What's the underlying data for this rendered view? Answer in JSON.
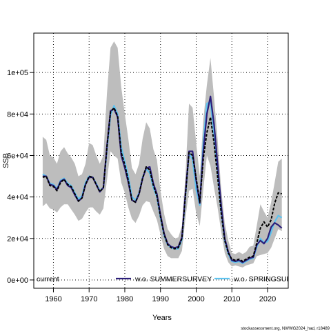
{
  "chart_data": {
    "type": "line",
    "xlabel": "Years",
    "ylabel": "SSB",
    "xlim": [
      1954.5,
      2025.8
    ],
    "ylim": [
      -4000,
      119000
    ],
    "x_ticks": [
      "1960",
      "1970",
      "1980",
      "1990",
      "2000",
      "2010",
      "2020"
    ],
    "y_ticks": [
      "0e+00",
      "2e+04",
      "4e+04",
      "6e+04",
      "8e+04",
      "1e+05"
    ],
    "grid": true,
    "legend_position": "bottom",
    "caption": "stockassessment.org, NWWG2024_had, r18489",
    "confidence_band": {
      "name": "current",
      "color": "#bdbdbd",
      "x": [
        1957,
        1958,
        1959,
        1960,
        1961,
        1962,
        1963,
        1964,
        1965,
        1966,
        1967,
        1968,
        1969,
        1970,
        1971,
        1972,
        1973,
        1974,
        1975,
        1976,
        1977,
        1978,
        1979,
        1980,
        1981,
        1982,
        1983,
        1984,
        1985,
        1986,
        1987,
        1988,
        1989,
        1990,
        1991,
        1992,
        1993,
        1994,
        1995,
        1996,
        1997,
        1998,
        1999,
        2000,
        2001,
        2002,
        2003,
        2004,
        2005,
        2006,
        2007,
        2008,
        2009,
        2010,
        2011,
        2012,
        2013,
        2014,
        2015,
        2016,
        2017,
        2018,
        2019,
        2020,
        2021,
        2022,
        2023,
        2024
      ],
      "lower": [
        35500,
        37000,
        34500,
        34000,
        32500,
        35000,
        36500,
        36500,
        34000,
        31500,
        28500,
        29500,
        32500,
        35000,
        35000,
        33000,
        31500,
        34500,
        48000,
        62000,
        60000,
        58500,
        47000,
        42000,
        35000,
        29500,
        27500,
        31000,
        36000,
        38000,
        37500,
        33000,
        29000,
        22000,
        15000,
        11500,
        10500,
        10500,
        10500,
        14000,
        30000,
        43000,
        44000,
        32000,
        26000,
        43500,
        60000,
        55000,
        44500,
        35000,
        23500,
        13000,
        8500,
        6500,
        7000,
        6500,
        6000,
        7000,
        7500,
        8000,
        11500,
        12000,
        12500,
        13000,
        15500,
        20000,
        24500,
        23500
      ],
      "upper": [
        69000,
        67500,
        60000,
        59000,
        56000,
        62000,
        64000,
        61000,
        59000,
        56000,
        50000,
        51000,
        56000,
        66000,
        65000,
        60000,
        56000,
        60000,
        90000,
        112000,
        115000,
        112000,
        93000,
        80000,
        68000,
        54000,
        51000,
        56000,
        68000,
        76000,
        73000,
        63000,
        58000,
        43000,
        32000,
        24500,
        22000,
        20000,
        20500,
        26000,
        51000,
        85000,
        83000,
        66000,
        50000,
        77000,
        94000,
        107000,
        88000,
        68000,
        44000,
        27500,
        19000,
        13000,
        12500,
        13500,
        12500,
        13500,
        16000,
        16500,
        26500,
        36500,
        33000,
        30000,
        37500,
        47000,
        57000,
        58500
      ]
    },
    "series": [
      {
        "name": "current",
        "color": "#000000",
        "dash": "4,2",
        "x": [
          1957,
          1958,
          1959,
          1960,
          1961,
          1962,
          1963,
          1964,
          1965,
          1966,
          1967,
          1968,
          1969,
          1970,
          1971,
          1972,
          1973,
          1974,
          1975,
          1976,
          1977,
          1978,
          1979,
          1980,
          1981,
          1982,
          1983,
          1984,
          1985,
          1986,
          1987,
          1988,
          1989,
          1990,
          1991,
          1992,
          1993,
          1994,
          1995,
          1996,
          1997,
          1998,
          1999,
          2000,
          2001,
          2002,
          2003,
          2004,
          2005,
          2006,
          2007,
          2008,
          2009,
          2010,
          2011,
          2012,
          2013,
          2014,
          2015,
          2016,
          2017,
          2018,
          2019,
          2020,
          2021,
          2022,
          2023,
          2024
        ],
        "values": [
          49500,
          50000,
          45500,
          45000,
          43000,
          47000,
          48500,
          46000,
          45000,
          41500,
          38000,
          39500,
          46000,
          50000,
          49500,
          46000,
          42500,
          44500,
          64000,
          81000,
          83000,
          79000,
          61500,
          55500,
          48000,
          38500,
          37500,
          41500,
          49000,
          54500,
          53000,
          45500,
          40500,
          30500,
          22000,
          17000,
          15500,
          15000,
          15500,
          20000,
          41000,
          61500,
          60000,
          49000,
          37500,
          58500,
          71000,
          78500,
          66000,
          50000,
          32500,
          19000,
          13000,
          10000,
          9500,
          10000,
          9000,
          10000,
          11000,
          11500,
          18000,
          25000,
          28000,
          25500,
          29000,
          37000,
          42000,
          41500
        ]
      },
      {
        "name": "w.o. SUMMERSURVEY",
        "color": "#2b1e7a",
        "dash": "",
        "x": [
          1957,
          1958,
          1959,
          1960,
          1961,
          1962,
          1963,
          1964,
          1965,
          1966,
          1967,
          1968,
          1969,
          1970,
          1971,
          1972,
          1973,
          1974,
          1975,
          1976,
          1977,
          1978,
          1979,
          1980,
          1981,
          1982,
          1983,
          1984,
          1985,
          1986,
          1987,
          1988,
          1989,
          1990,
          1991,
          1992,
          1993,
          1994,
          1995,
          1996,
          1997,
          1998,
          1999,
          2000,
          2001,
          2002,
          2003,
          2004,
          2005,
          2006,
          2007,
          2008,
          2009,
          2010,
          2011,
          2012,
          2013,
          2014,
          2015,
          2016,
          2017,
          2018,
          2019,
          2020,
          2021,
          2022,
          2023,
          2024
        ],
        "values": [
          50000,
          50000,
          46000,
          45500,
          43500,
          47500,
          48500,
          45500,
          44500,
          41000,
          38000,
          39500,
          46000,
          49500,
          49500,
          46000,
          42500,
          44500,
          64500,
          81500,
          82500,
          78500,
          60000,
          54000,
          47000,
          38500,
          37500,
          41500,
          49000,
          54000,
          54500,
          46500,
          41500,
          31500,
          22500,
          17500,
          16000,
          15500,
          16000,
          20500,
          42000,
          62000,
          62000,
          48000,
          37000,
          62000,
          80000,
          88500,
          75000,
          56000,
          36000,
          20000,
          13500,
          9500,
          9000,
          9500,
          8500,
          9500,
          10500,
          11000,
          17000,
          19000,
          17500,
          20000,
          25500,
          27500,
          26500,
          25000
        ]
      },
      {
        "name": "w.o. SPRINGSURVEY",
        "color": "#5fc3ef",
        "dash": "",
        "x": [
          1957,
          1958,
          1959,
          1960,
          1961,
          1962,
          1963,
          1964,
          1965,
          1966,
          1967,
          1968,
          1969,
          1970,
          1971,
          1972,
          1973,
          1974,
          1975,
          1976,
          1977,
          1978,
          1979,
          1980,
          1981,
          1982,
          1983,
          1984,
          1985,
          1986,
          1987,
          1988,
          1989,
          1990,
          1991,
          1992,
          1993,
          1994,
          1995,
          1996,
          1997,
          1998,
          1999,
          2000,
          2001,
          2002,
          2003,
          2004,
          2005,
          2006,
          2007,
          2008,
          2009,
          2010,
          2011,
          2012,
          2013,
          2014,
          2015,
          2016,
          2017,
          2018,
          2019,
          2020,
          2021,
          2022,
          2023,
          2024
        ],
        "values": [
          51000,
          50000,
          46500,
          46000,
          44000,
          48000,
          49000,
          46500,
          45500,
          42000,
          39000,
          40500,
          47000,
          50000,
          49500,
          46500,
          43000,
          44500,
          63000,
          79500,
          84000,
          80000,
          64000,
          57000,
          50000,
          40000,
          38500,
          42000,
          49500,
          53500,
          51500,
          44500,
          40000,
          30000,
          21500,
          17000,
          15500,
          15000,
          15000,
          19500,
          41000,
          61000,
          58000,
          43500,
          36000,
          66000,
          85000,
          86000,
          70000,
          52000,
          33000,
          19000,
          12500,
          9000,
          8500,
          9000,
          8000,
          9000,
          10000,
          10500,
          16000,
          20000,
          18000,
          18500,
          23000,
          28000,
          31000,
          30000
        ]
      }
    ]
  },
  "legend": [
    {
      "label": "current",
      "color": "#000000",
      "dash": "4,2"
    },
    {
      "label": "w.o. SUMMERSURVEY",
      "color": "#2b1e7a",
      "dash": ""
    },
    {
      "label": "w.o. SPRINGSURVEY",
      "color": "#5fc3ef",
      "dash": ""
    }
  ]
}
